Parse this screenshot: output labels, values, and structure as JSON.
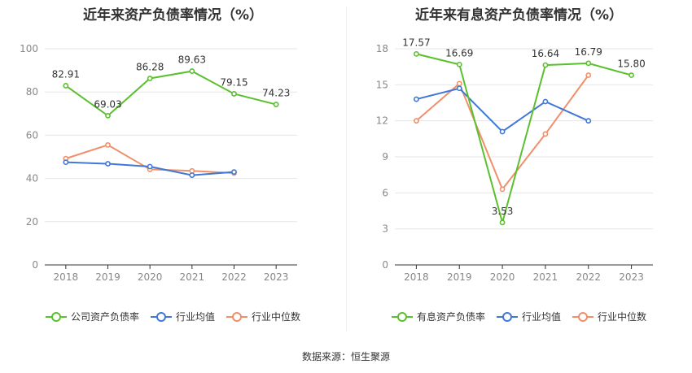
{
  "source_label": "数据来源：恒生聚源",
  "chart_data": [
    {
      "type": "line",
      "title": "近年来资产负债率情况（%）",
      "categories": [
        "2018",
        "2019",
        "2020",
        "2021",
        "2022",
        "2023"
      ],
      "ylim": [
        0,
        100
      ],
      "yticks": [
        0,
        20,
        40,
        60,
        80,
        100
      ],
      "grid": true,
      "legend_position": "bottom",
      "series": [
        {
          "name": "公司资产负债率",
          "color": "#5bc02e",
          "values": [
            82.91,
            69.03,
            86.28,
            89.63,
            79.15,
            74.23
          ],
          "labels": [
            "82.91",
            "69.03",
            "86.28",
            "89.63",
            "79.15",
            "74.23"
          ]
        },
        {
          "name": "行业均值",
          "color": "#3f78d6",
          "values": [
            47.5,
            46.8,
            45.5,
            41.5,
            43.0,
            null
          ]
        },
        {
          "name": "行业中位数",
          "color": "#f0906a",
          "values": [
            49.2,
            55.5,
            44.2,
            43.5,
            42.5,
            null
          ]
        }
      ]
    },
    {
      "type": "line",
      "title": "近年来有息资产负债率情况（%）",
      "categories": [
        "2018",
        "2019",
        "2020",
        "2021",
        "2022",
        "2023"
      ],
      "ylim": [
        0,
        18
      ],
      "yticks": [
        0,
        3,
        6,
        9,
        12,
        15,
        18
      ],
      "grid": true,
      "legend_position": "bottom",
      "series": [
        {
          "name": "有息资产负债率",
          "color": "#5bc02e",
          "values": [
            17.57,
            16.69,
            3.53,
            16.64,
            16.79,
            15.8
          ],
          "labels": [
            "17.57",
            "16.69",
            "3.53",
            "16.64",
            "16.79",
            "15.80"
          ]
        },
        {
          "name": "行业均值",
          "color": "#3f78d6",
          "values": [
            13.8,
            14.7,
            11.1,
            13.6,
            12.0,
            null
          ]
        },
        {
          "name": "行业中位数",
          "color": "#f0906a",
          "values": [
            12.0,
            15.1,
            6.3,
            10.9,
            15.8,
            null
          ]
        }
      ]
    }
  ]
}
